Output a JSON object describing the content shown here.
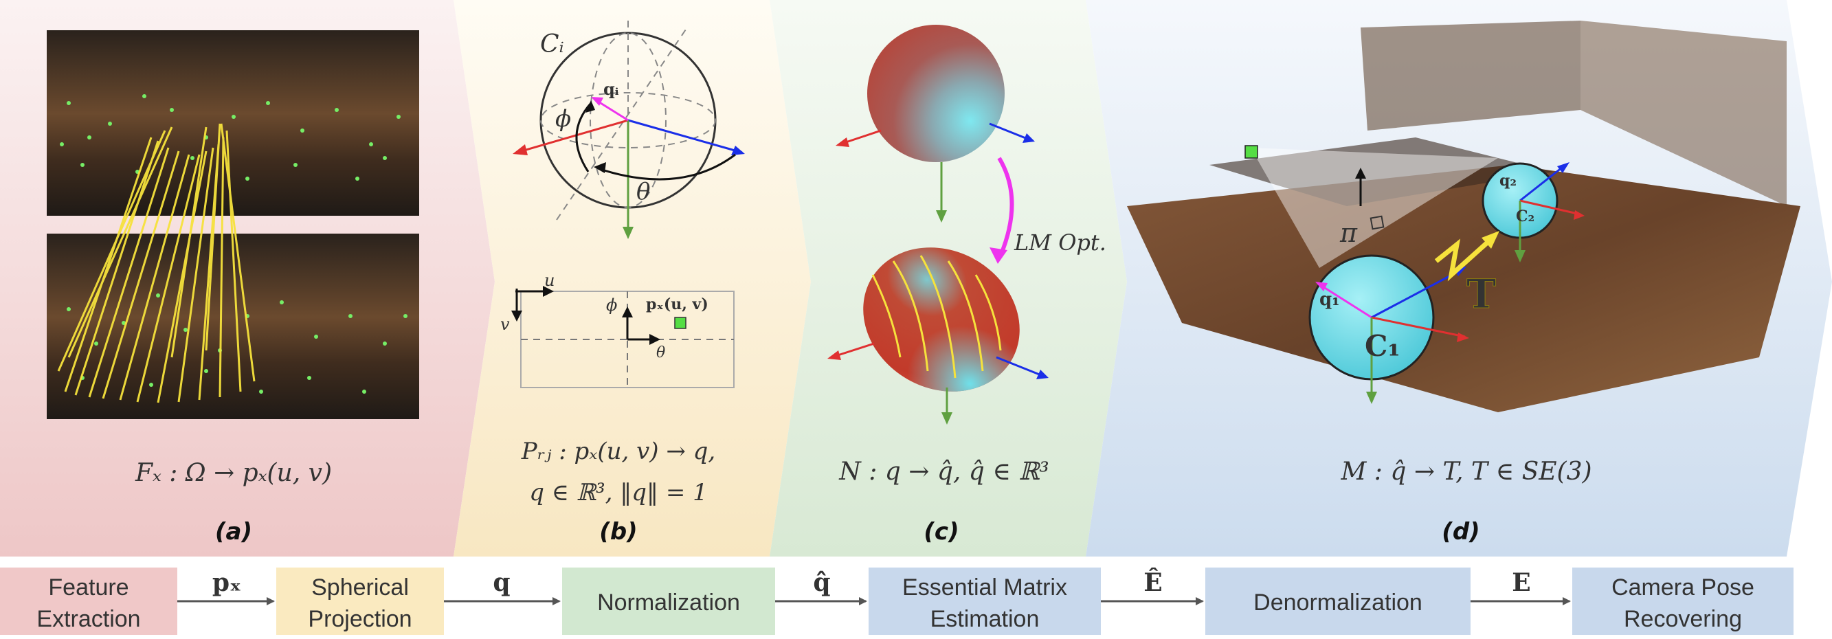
{
  "panels": [
    {
      "label": "(a)",
      "formula": "Fₓ : Ω → pₓ(u, v)"
    },
    {
      "label": "(b)",
      "formula_line1": "Pᵣⱼ : pₓ(u, v) → q,",
      "formula_line2": "q ∈ ℝ³, ‖q‖ = 1",
      "sphere_label": "Cᵢ",
      "point_label": "qᵢ",
      "phi": "ϕ",
      "theta": "θ",
      "grid_u": "u",
      "grid_v": "v",
      "grid_phi": "ϕ",
      "grid_theta": "θ",
      "grid_point": "pₓ(u, v)"
    },
    {
      "label": "(c)",
      "formula": "N : q → q̂,  q̂ ∈ ℝ³",
      "opt_label": "LM Opt."
    },
    {
      "label": "(d)",
      "formula": "M : q̂ → T,  T ∈ SE(3)",
      "c1": "C₁",
      "c2": "C₂",
      "q1": "q₁",
      "q2": "q₂",
      "pi": "π",
      "t": "T"
    }
  ],
  "pipeline": {
    "boxes": [
      {
        "line1": "Feature",
        "line2": "Extraction",
        "color": "#f0c8c8"
      },
      {
        "line1": "Spherical",
        "line2": "Projection",
        "color": "#faeac0"
      },
      {
        "line1": "Normalization",
        "line2": "",
        "color": "#d2e8d0"
      },
      {
        "line1": "Essential Matrix",
        "line2": "Estimation",
        "color": "#c8d8ec"
      },
      {
        "line1": "Denormalization",
        "line2": "",
        "color": "#c8d8ec"
      },
      {
        "line1": "Camera Pose",
        "line2": "Recovering",
        "color": "#c8d8ec"
      }
    ],
    "arrows": [
      "pₓ",
      "q",
      "q̂",
      "Ê",
      "E"
    ]
  },
  "colors": {
    "panel_a": "#f3d4d4",
    "panel_b": "#fbf1d9",
    "panel_c": "#e2efdf",
    "panel_d": "#dbe6f4",
    "axis_red": "#e03030",
    "axis_blue": "#1a2ee8",
    "axis_green": "#5fa040",
    "magenta": "#ee33ee",
    "yellow": "#f6e23c",
    "sphere_cyan": "#5fd8e6",
    "sphere_red": "#c23a2a"
  }
}
